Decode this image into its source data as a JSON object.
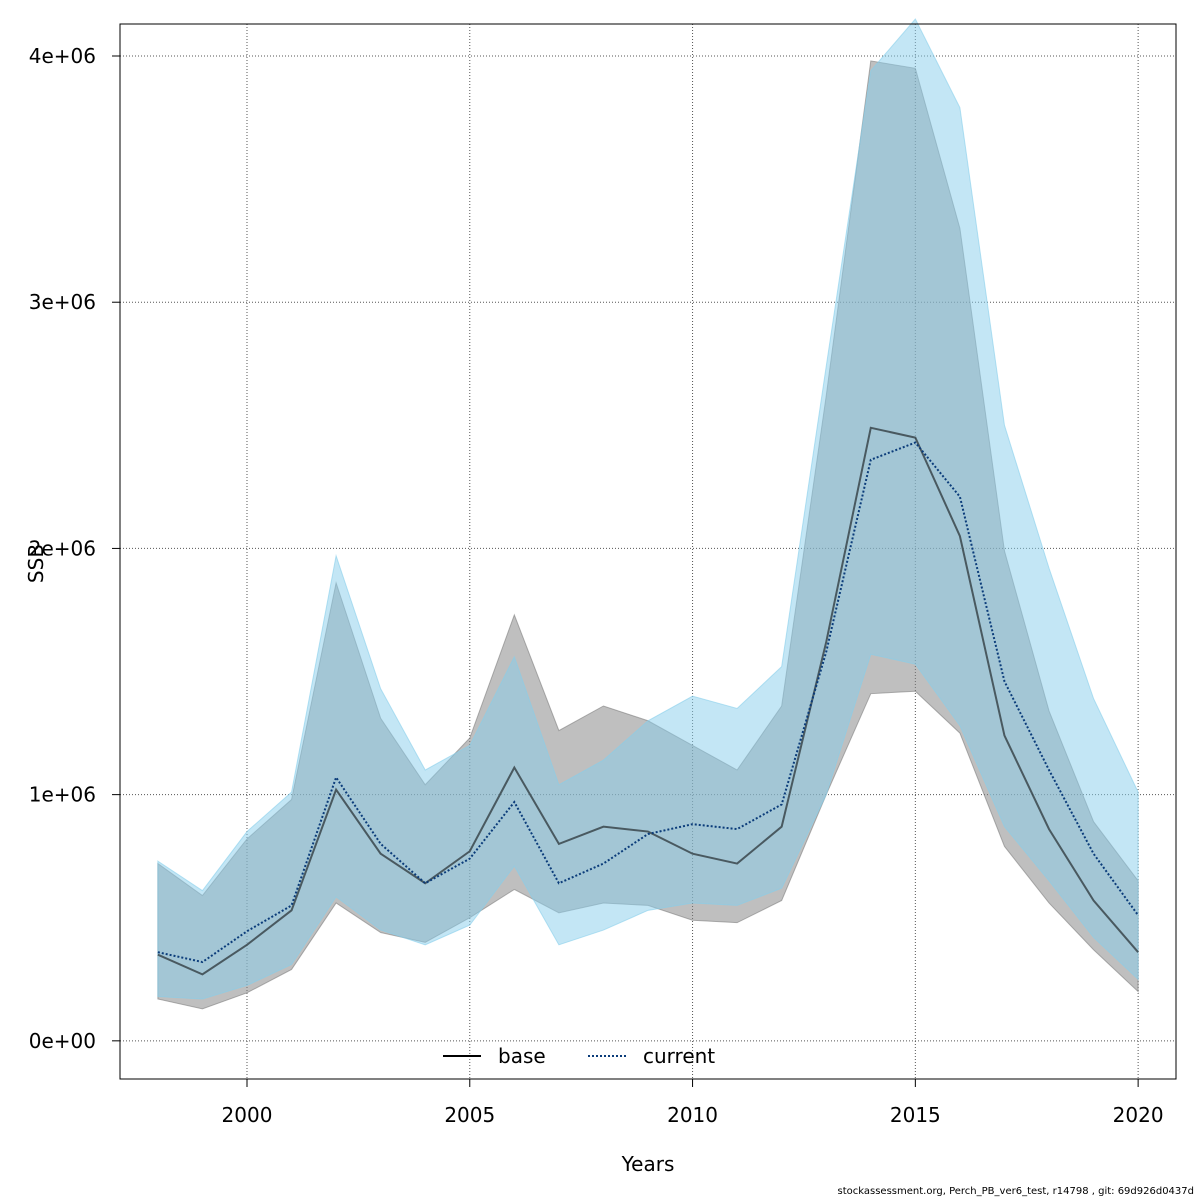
{
  "chart_data": {
    "type": "area",
    "xlabel": "Years",
    "ylabel": "SSB",
    "xlim": [
      1997.15,
      2020.85
    ],
    "ylim": [
      -155000,
      4130000
    ],
    "x_ticks": [
      2000,
      2005,
      2010,
      2015,
      2020
    ],
    "y_ticks": [
      0,
      1000000,
      2000000,
      3000000,
      4000000
    ],
    "y_tick_labels": [
      "0e+00",
      "1e+06",
      "2e+06",
      "3e+06",
      "4e+06"
    ],
    "grid": true,
    "legend": {
      "placement": "bottom-center",
      "orientation": "horizontal"
    },
    "x": [
      1998,
      1999,
      2000,
      2001,
      2002,
      2003,
      2004,
      2005,
      2006,
      2007,
      2008,
      2009,
      2010,
      2011,
      2012,
      2013,
      2014,
      2015,
      2016,
      2017,
      2018,
      2019,
      2020
    ],
    "series": [
      {
        "name": "base",
        "line_style": "solid",
        "line_color": "#000000",
        "band_color": "#7f7f7f",
        "values": [
          350000,
          270000,
          390000,
          530000,
          1020000,
          760000,
          640000,
          770000,
          1110000,
          800000,
          870000,
          850000,
          760000,
          720000,
          870000,
          1620000,
          2490000,
          2450000,
          2050000,
          1240000,
          860000,
          570000,
          360000
        ],
        "lower": [
          170000,
          130000,
          195000,
          290000,
          560000,
          440000,
          400000,
          500000,
          615000,
          520000,
          560000,
          550000,
          490000,
          480000,
          570000,
          1000000,
          1410000,
          1420000,
          1250000,
          790000,
          560000,
          370000,
          200000
        ],
        "upper": [
          720000,
          590000,
          820000,
          980000,
          1860000,
          1310000,
          1040000,
          1230000,
          1730000,
          1260000,
          1360000,
          1300000,
          1200000,
          1100000,
          1360000,
          2620000,
          3980000,
          3950000,
          3300000,
          1990000,
          1340000,
          890000,
          650000
        ]
      },
      {
        "name": "current",
        "line_style": "dotted",
        "line_color": "#0b3c7a",
        "band_color": "#87ceeb",
        "values": [
          360000,
          320000,
          445000,
          550000,
          1070000,
          800000,
          640000,
          740000,
          970000,
          640000,
          720000,
          840000,
          880000,
          860000,
          960000,
          1580000,
          2360000,
          2430000,
          2210000,
          1460000,
          1100000,
          760000,
          510000
        ],
        "lower": [
          180000,
          170000,
          225000,
          310000,
          585000,
          450000,
          390000,
          470000,
          710000,
          390000,
          450000,
          530000,
          560000,
          550000,
          620000,
          1000000,
          1570000,
          1530000,
          1280000,
          870000,
          650000,
          420000,
          250000
        ],
        "upper": [
          730000,
          610000,
          850000,
          1010000,
          1970000,
          1430000,
          1100000,
          1200000,
          1560000,
          1040000,
          1140000,
          1300000,
          1400000,
          1350000,
          1520000,
          2740000,
          3940000,
          4150000,
          3790000,
          2500000,
          1920000,
          1390000,
          1010000
        ]
      }
    ]
  },
  "footnote": "stockassessment.org, Perch_PB_ver6_test, r14798 , git: 69d926d0437d"
}
